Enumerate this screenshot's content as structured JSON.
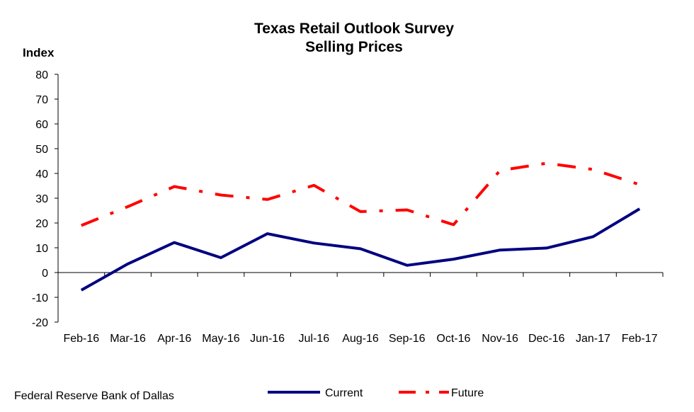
{
  "chart_data": {
    "type": "line",
    "title": "Texas Retail Outlook Survey",
    "subtitle": "Selling Prices",
    "ylabel": "Index",
    "xlabel": "",
    "ylim": [
      -20,
      80
    ],
    "yticks": [
      80,
      70,
      60,
      50,
      40,
      30,
      20,
      10,
      0,
      -10,
      -20
    ],
    "categories": [
      "Feb-16",
      "Mar-16",
      "Apr-16",
      "May-16",
      "Jun-16",
      "Jul-16",
      "Aug-16",
      "Sep-16",
      "Oct-16",
      "Nov-16",
      "Dec-16",
      "Jan-17",
      "Feb-17"
    ],
    "grid": false,
    "legend_position": "bottom",
    "series": [
      {
        "name": "Current",
        "color": "#000080",
        "style": "solid",
        "values": [
          -7.1,
          3.5,
          12.1,
          6.0,
          15.7,
          11.9,
          9.6,
          2.9,
          5.4,
          9.1,
          9.9,
          14.5,
          25.7
        ]
      },
      {
        "name": "Future",
        "color": "#ff0000",
        "style": "dash-dot",
        "values": [
          19.0,
          26.6,
          34.7,
          31.3,
          29.5,
          35.2,
          24.6,
          25.3,
          19.3,
          41.2,
          44.1,
          41.6,
          35.5
        ]
      }
    ]
  },
  "source": "Federal Reserve Bank of Dallas"
}
